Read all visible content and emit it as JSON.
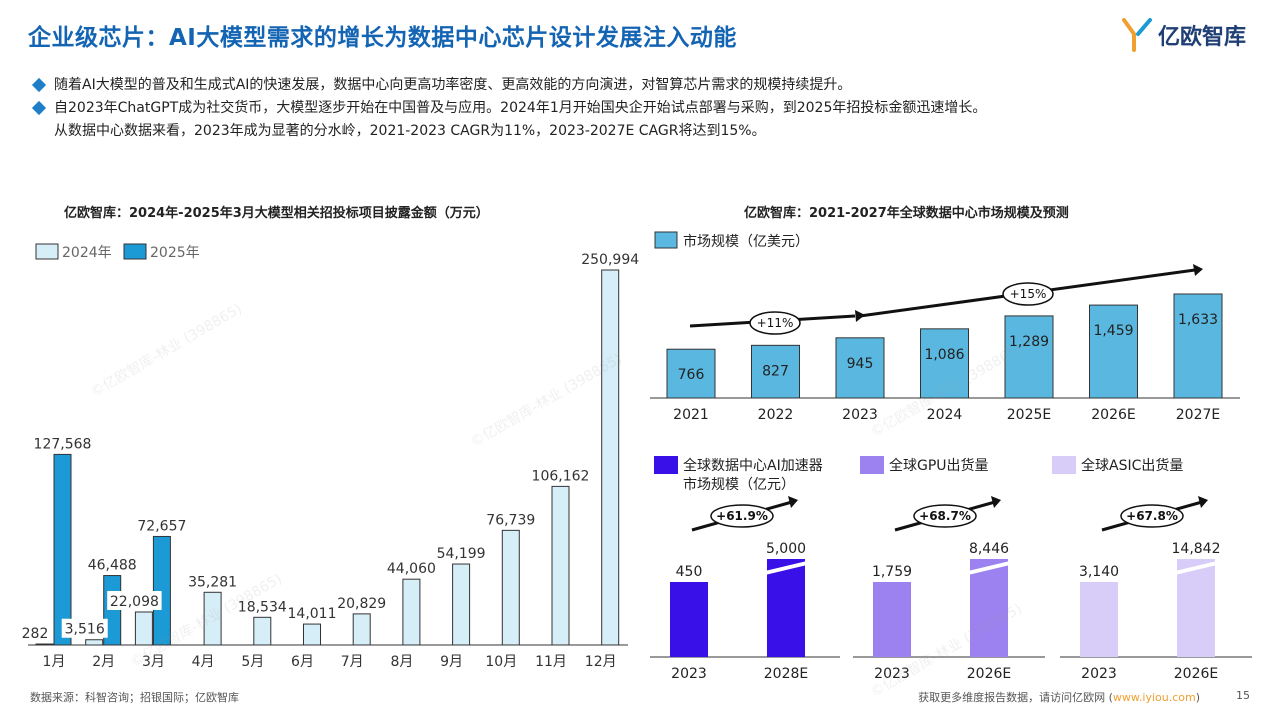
{
  "page": {
    "title": "企业级芯片：AI大模型需求的增长为数据中心芯片设计发展注入动能",
    "logo_text": "亿欧智库",
    "bullets": [
      "随着AI大模型的普及和生成式AI的快速发展，数据中心向更高功率密度、更高效能的方向演进，对智算芯片需求的规模持续提升。",
      "自2023年ChatGPT成为社交货币，大模型逐步开始在中国普及与应用。2024年1月开始国央企开始试点部署与采购，到2025年招投标金额迅速增长。"
    ],
    "bullet2_cont": "从数据中心数据来看，2023年成为显著的分水岭，2021-2023 CAGR为11%，2023-2027E CAGR将达到15%。",
    "source": "数据来源：科智咨询；招银国际；亿欧智库",
    "footer_text": "获取更多维度报告数据，请访问亿欧网 (",
    "footer_link": "www.iyiou.com",
    "footer_close": ")",
    "page_number": "15",
    "watermark": "©亿欧智库-林业 (398865)"
  },
  "colors": {
    "title": "#1464b4",
    "bar_2024": "#d6eef8",
    "bar_2025": "#1b9ad6",
    "dc_bar": "#5ab8e0",
    "ai_acc": "#3a10e8",
    "gpu": "#9b82f0",
    "asic": "#d8ccf8"
  },
  "chart_data": [
    {
      "type": "bar",
      "title": "亿欧智库：2024年-2025年3月大模型相关招投标项目披露金额（万元）",
      "categories": [
        "1月",
        "2月",
        "3月",
        "4月",
        "5月",
        "6月",
        "7月",
        "8月",
        "9月",
        "10月",
        "11月",
        "12月"
      ],
      "series": [
        {
          "name": "2024年",
          "values": [
            282,
            3516,
            22098,
            35281,
            18534,
            14011,
            20829,
            44060,
            54199,
            76739,
            106162,
            250994
          ]
        },
        {
          "name": "2025年",
          "values": [
            127568,
            46488,
            72657,
            null,
            null,
            null,
            null,
            null,
            null,
            null,
            null,
            null
          ]
        }
      ],
      "labels_2024": [
        "282",
        "3,516",
        "22,098",
        "35,281",
        "18,534",
        "14,011",
        "20,829",
        "44,060",
        "54,199",
        "76,739",
        "106,162",
        "250,994"
      ],
      "labels_2025": [
        "127,568",
        "46,488",
        "72,657"
      ],
      "ylim": [
        0,
        250994
      ],
      "legend": "top-left"
    },
    {
      "type": "bar",
      "title": "亿欧智库：2021-2027年全球数据中心市场规模及预测",
      "categories": [
        "2021",
        "2022",
        "2023",
        "2024",
        "2025E",
        "2026E",
        "2027E"
      ],
      "series": [
        {
          "name": "市场规模（亿美元）",
          "values": [
            766,
            827,
            945,
            1086,
            1289,
            1459,
            1633
          ]
        }
      ],
      "labels": [
        "766",
        "827",
        "945",
        "1,086",
        "1,289",
        "1,459",
        "1,633"
      ],
      "annotations": [
        "+11%",
        "+15%"
      ],
      "legend": "top-left"
    },
    {
      "type": "bar",
      "series_name": "全球数据中心AI加速器市场规模（亿元）",
      "legend_line1": "全球数据中心AI加速器",
      "legend_line2": "市场规模（亿元）",
      "categories": [
        "2023",
        "2028E"
      ],
      "values": [
        450,
        5000
      ],
      "labels": [
        "450",
        "5,000"
      ],
      "annotation": "+61.9%"
    },
    {
      "type": "bar",
      "series_name": "全球GPU出货量",
      "categories": [
        "2023",
        "2026E"
      ],
      "values": [
        1759,
        8446
      ],
      "labels": [
        "1,759",
        "8,446"
      ],
      "annotation": "+68.7%"
    },
    {
      "type": "bar",
      "series_name": "全球ASIC出货量",
      "categories": [
        "2023",
        "2026E"
      ],
      "values": [
        3140,
        14842
      ],
      "labels": [
        "3,140",
        "14,842"
      ],
      "annotation": "+67.8%"
    }
  ]
}
